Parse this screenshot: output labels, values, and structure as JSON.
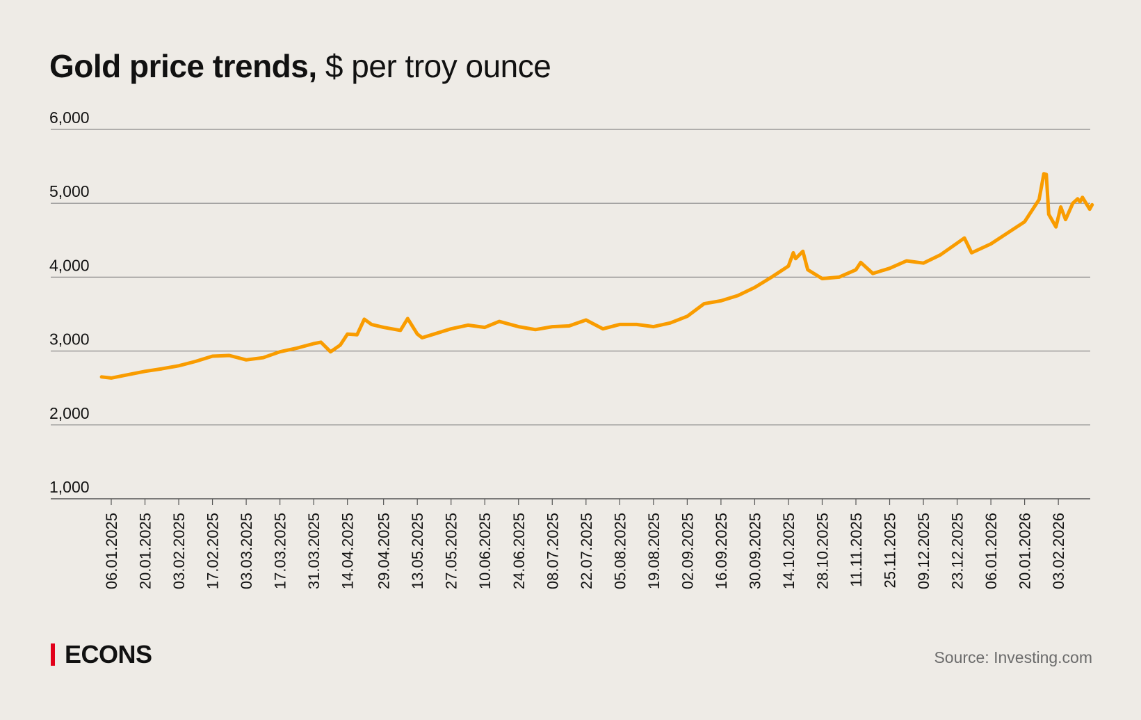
{
  "title": {
    "bold": "Gold price trends,",
    "rest": " $ per troy ounce"
  },
  "logo": "ECONS",
  "source": "Source: Investing.com",
  "colors": {
    "background": "#eeebe6",
    "line": "#f99c00",
    "grid": "#7a7a7a",
    "logo_bar": "#e2001a"
  },
  "chart_data": {
    "type": "line",
    "title": "Gold price trends, $ per troy ounce",
    "xlabel": "",
    "ylabel": "",
    "ylim": [
      1000,
      6000
    ],
    "grid": true,
    "y_ticks": [
      "1,000",
      "2,000",
      "3,000",
      "4,000",
      "5,000",
      "6,000"
    ],
    "y_tick_values": [
      1000,
      2000,
      3000,
      4000,
      5000,
      6000
    ],
    "x_ticks": [
      "06.01.2025",
      "20.01.2025",
      "03.02.2025",
      "17.02.2025",
      "03.03.2025",
      "17.03.2025",
      "31.03.2025",
      "14.04.2025",
      "29.04.2025",
      "13.05.2025",
      "27.05.2025",
      "10.06.2025",
      "24.06.2025",
      "08.07.2025",
      "22.07.2025",
      "05.08.2025",
      "19.08.2025",
      "02.09.2025",
      "16.09.2025",
      "30.09.2025",
      "14.10.2025",
      "28.10.2025",
      "11.11.2025",
      "25.11.2025",
      "09.12.2025",
      "23.12.2025",
      "06.01.2026",
      "20.01.2026",
      "03.02.2026"
    ],
    "series": [
      {
        "x": [
          "2025-01-02",
          "2025-01-06",
          "2025-01-13",
          "2025-01-20",
          "2025-01-27",
          "2025-02-03",
          "2025-02-10",
          "2025-02-17",
          "2025-02-24",
          "2025-03-03",
          "2025-03-10",
          "2025-03-17",
          "2025-03-24",
          "2025-03-31",
          "2025-04-03",
          "2025-04-07",
          "2025-04-11",
          "2025-04-14",
          "2025-04-18",
          "2025-04-21",
          "2025-04-24",
          "2025-04-29",
          "2025-05-06",
          "2025-05-09",
          "2025-05-13",
          "2025-05-15",
          "2025-05-20",
          "2025-05-27",
          "2025-06-03",
          "2025-06-10",
          "2025-06-16",
          "2025-06-24",
          "2025-07-01",
          "2025-07-08",
          "2025-07-15",
          "2025-07-22",
          "2025-07-29",
          "2025-08-05",
          "2025-08-12",
          "2025-08-19",
          "2025-08-26",
          "2025-09-02",
          "2025-09-09",
          "2025-09-16",
          "2025-09-23",
          "2025-09-30",
          "2025-10-07",
          "2025-10-14",
          "2025-10-16",
          "2025-10-17",
          "2025-10-20",
          "2025-10-22",
          "2025-10-28",
          "2025-11-04",
          "2025-11-11",
          "2025-11-13",
          "2025-11-18",
          "2025-11-25",
          "2025-12-02",
          "2025-12-09",
          "2025-12-16",
          "2025-12-23",
          "2025-12-26",
          "2025-12-29",
          "2026-01-06",
          "2026-01-13",
          "2026-01-20",
          "2026-01-26",
          "2026-01-28",
          "2026-01-29",
          "2026-01-30",
          "2026-02-02",
          "2026-02-04",
          "2026-02-06",
          "2026-02-09",
          "2026-02-11",
          "2026-02-12",
          "2026-02-13",
          "2026-02-16",
          "2026-02-17"
        ],
        "y": [
          2650,
          2635,
          2680,
          2725,
          2760,
          2800,
          2860,
          2930,
          2940,
          2880,
          2910,
          2990,
          3040,
          3100,
          3120,
          2990,
          3080,
          3230,
          3220,
          3430,
          3360,
          3320,
          3280,
          3440,
          3230,
          3180,
          3230,
          3300,
          3350,
          3320,
          3400,
          3330,
          3290,
          3330,
          3340,
          3420,
          3300,
          3360,
          3360,
          3330,
          3380,
          3470,
          3640,
          3680,
          3750,
          3860,
          4000,
          4150,
          4330,
          4250,
          4350,
          4100,
          3980,
          4000,
          4100,
          4200,
          4050,
          4120,
          4220,
          4190,
          4300,
          4460,
          4530,
          4330,
          4450,
          4600,
          4750,
          5050,
          5400,
          5390,
          4850,
          4680,
          4950,
          4780,
          5000,
          5060,
          5020,
          5080,
          4920,
          4980
        ]
      }
    ]
  }
}
